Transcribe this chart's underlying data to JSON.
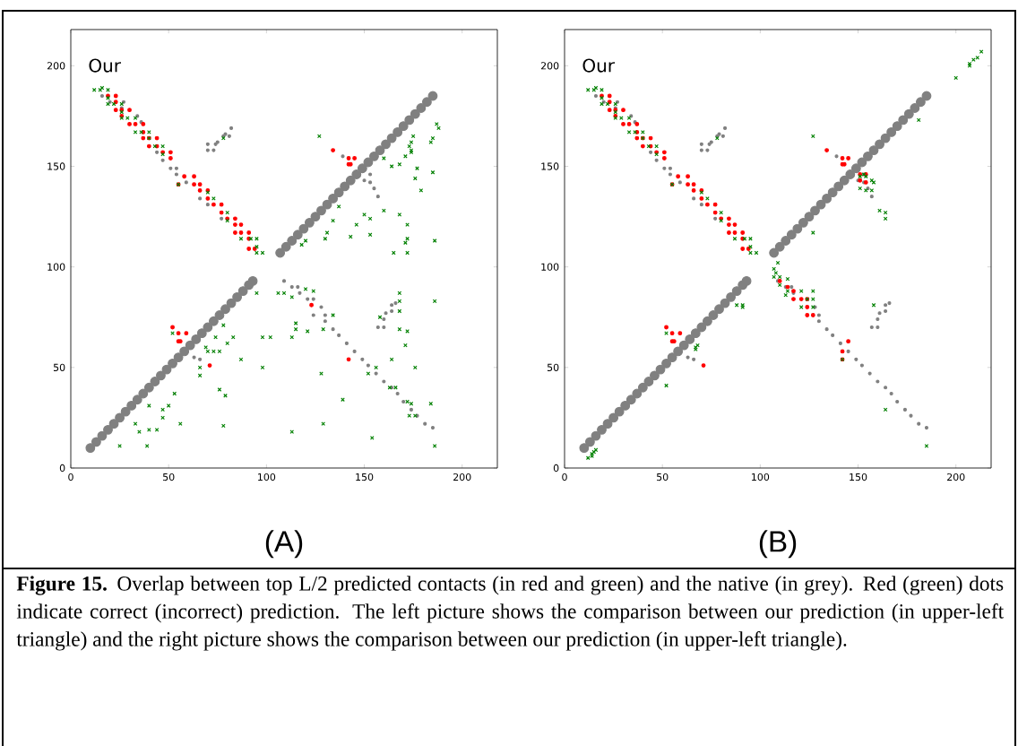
{
  "chart_data": [
    {
      "type": "scatter",
      "xlabel": "(A)",
      "annotations": [
        "Our",
        "**Figure 15.** Overlap between top L/2 predicted contacts (in red and green) and the native (in grey). Red (green) dots indicate correct (incorrect) prediction. The left picture shows the comparison between our prediction (in upper-left triangle) and the right picture shows the comparison between our prediction (in upper-left triangle)."
      ],
      "xlim": [
        0,
        218
      ],
      "ylim": [
        0,
        218
      ],
      "xticks": [
        0,
        50,
        100,
        150,
        200
      ],
      "yticks": [
        0,
        50,
        100,
        150,
        200
      ],
      "series": [
        {
          "color": "#808080",
          "marker": "circle",
          "x": [
            10,
            13,
            16,
            19,
            22,
            25,
            28,
            31,
            34,
            37,
            40,
            43,
            46,
            49,
            52,
            55,
            58,
            61,
            64,
            67,
            70,
            73,
            76,
            79,
            82,
            85,
            88,
            91,
            93,
            107,
            110,
            113,
            116,
            119,
            122,
            125,
            128,
            131,
            134,
            137,
            140,
            143,
            146,
            149,
            152,
            155,
            158,
            161,
            164,
            167,
            170,
            173,
            176,
            179,
            182,
            185
          ],
          "values": [
            10,
            13,
            16,
            19,
            22,
            25,
            28,
            31,
            34,
            37,
            40,
            43,
            46,
            49,
            52,
            55,
            58,
            61,
            64,
            67,
            70,
            73,
            76,
            79,
            82,
            85,
            88,
            91,
            93,
            107,
            110,
            113,
            116,
            119,
            122,
            125,
            128,
            131,
            134,
            137,
            140,
            143,
            146,
            149,
            152,
            155,
            158,
            161,
            164,
            167,
            170,
            173,
            176,
            179,
            182,
            185
          ]
        },
        {
          "color": "#808080",
          "marker": "circle",
          "x": [
            16,
            20,
            27,
            26,
            34,
            36,
            44,
            47,
            51,
            54,
            54,
            59,
            66,
            70,
            77,
            70,
            70,
            73,
            74,
            75,
            78,
            79,
            81,
            82,
            139,
            153,
            150,
            153,
            155,
            157,
            109,
            113,
            116,
            117,
            121,
            124,
            128,
            124,
            130,
            130,
            134,
            137,
            141,
            145,
            149,
            152,
            156,
            160,
            164,
            167,
            170,
            174,
            177,
            181,
            185,
            157,
            160,
            160,
            161,
            164,
            164,
            166,
            63,
            66
          ],
          "values": [
            185,
            182,
            182,
            179,
            175,
            172,
            157,
            153,
            149,
            149,
            146,
            142,
            134,
            131,
            124,
            161,
            158,
            158,
            161,
            162,
            165,
            166,
            165,
            169,
            155,
            146,
            143,
            142,
            139,
            135,
            93,
            90,
            90,
            87,
            84,
            84,
            80,
            76,
            76,
            73,
            69,
            66,
            62,
            58,
            54,
            51,
            47,
            43,
            40,
            37,
            33,
            29,
            26,
            22,
            20,
            70,
            70,
            74,
            77,
            78,
            81,
            82,
            55,
            54
          ]
        },
        {
          "color": "#ff0000",
          "marker": "circle",
          "x": [
            19,
            23,
            23,
            23,
            26,
            30,
            26,
            30,
            33,
            37,
            37,
            37,
            40,
            44,
            40,
            44,
            51,
            47,
            51,
            55,
            58,
            63,
            63,
            66,
            66,
            70,
            70,
            73,
            77,
            77,
            80,
            84,
            84,
            87,
            84,
            87,
            91,
            91,
            91,
            94,
            134,
            142,
            145,
            142,
            143,
            52,
            55,
            59,
            55,
            56,
            71,
            123,
            142
          ],
          "values": [
            185,
            185,
            182,
            178,
            178,
            178,
            175,
            171,
            171,
            171,
            167,
            164,
            164,
            164,
            160,
            160,
            157,
            157,
            154,
            141,
            145,
            145,
            141,
            141,
            138,
            138,
            134,
            131,
            131,
            127,
            124,
            124,
            121,
            121,
            117,
            117,
            117,
            114,
            109,
            109,
            158,
            154,
            154,
            151,
            151,
            70,
            67,
            67,
            63,
            63,
            51,
            81,
            54
          ]
        },
        {
          "color": "#008000",
          "marker": "cross",
          "x": [
            12,
            15,
            16,
            19,
            19,
            19,
            22,
            26,
            26,
            26,
            29,
            33,
            33,
            36,
            40,
            40,
            43,
            47,
            47,
            55,
            70,
            73,
            80,
            80,
            87,
            92,
            95,
            95,
            95,
            98,
            78,
            127,
            52,
            160,
            164,
            168,
            171,
            174,
            174,
            173,
            174,
            175,
            177,
            176,
            179,
            184,
            185,
            185,
            187,
            188,
            137,
            134,
            131,
            130,
            120,
            118,
            150,
            153,
            146,
            143,
            153,
            160,
            168,
            172,
            172,
            171,
            165,
            172,
            186,
            25,
            33,
            35,
            39,
            40,
            40,
            44,
            47,
            47,
            50,
            53,
            56,
            66,
            66,
            69,
            70,
            73,
            76,
            74,
            78,
            80,
            83,
            76,
            79,
            78,
            87,
            95,
            98,
            98,
            102,
            106,
            109,
            113,
            120,
            124,
            113,
            115,
            115,
            121,
            113,
            128,
            129,
            134,
            129,
            139,
            152,
            156,
            154,
            158,
            164,
            163,
            166,
            168,
            168,
            168,
            168,
            172,
            171,
            176,
            172,
            174,
            173,
            176,
            184,
            186,
            186
          ],
          "values": [
            188,
            188,
            189,
            188,
            184,
            181,
            181,
            181,
            177,
            174,
            174,
            174,
            167,
            167,
            167,
            164,
            160,
            160,
            156,
            141,
            137,
            134,
            127,
            123,
            114,
            114,
            114,
            110,
            107,
            107,
            164,
            165,
            67,
            154,
            150,
            151,
            155,
            157,
            158,
            160,
            162,
            165,
            149,
            144,
            138,
            162,
            164,
            147,
            171,
            169,
            130,
            123,
            117,
            114,
            113,
            111,
            126,
            124,
            121,
            115,
            116,
            128,
            126,
            121,
            114,
            112,
            107,
            107,
            113,
            11,
            22,
            18,
            11,
            31,
            19,
            19,
            29,
            25,
            31,
            37,
            22,
            50,
            46,
            60,
            58,
            58,
            58,
            65,
            71,
            62,
            65,
            39,
            36,
            21,
            54,
            87,
            65,
            50,
            65,
            87,
            87,
            85,
            89,
            88,
            65,
            72,
            69,
            68,
            18,
            47,
            22,
            76,
            69,
            34,
            47,
            50,
            15,
            75,
            54,
            40,
            40,
            87,
            83,
            78,
            69,
            68,
            61,
            50,
            33,
            32,
            26,
            26,
            32,
            83,
            11
          ]
        }
      ]
    },
    {
      "type": "scatter",
      "xlabel": "(B)",
      "annotations": [
        "Our"
      ],
      "xlim": [
        0,
        218
      ],
      "ylim": [
        0,
        218
      ],
      "xticks": [
        0,
        50,
        100,
        150,
        200
      ],
      "yticks": [
        0,
        50,
        100,
        150,
        200
      ],
      "series": [
        {
          "color": "#808080",
          "marker": "circle",
          "x": [
            10,
            13,
            16,
            19,
            22,
            25,
            28,
            31,
            34,
            37,
            40,
            43,
            46,
            49,
            52,
            55,
            58,
            61,
            64,
            67,
            70,
            73,
            76,
            79,
            82,
            85,
            88,
            91,
            93,
            107,
            110,
            113,
            116,
            119,
            122,
            125,
            128,
            131,
            134,
            137,
            140,
            143,
            146,
            149,
            152,
            155,
            158,
            161,
            164,
            167,
            170,
            173,
            176,
            179,
            182,
            185
          ],
          "values": [
            10,
            13,
            16,
            19,
            22,
            25,
            28,
            31,
            34,
            37,
            40,
            43,
            46,
            49,
            52,
            55,
            58,
            61,
            64,
            67,
            70,
            73,
            76,
            79,
            82,
            85,
            88,
            91,
            93,
            107,
            110,
            113,
            116,
            119,
            122,
            125,
            128,
            131,
            134,
            137,
            140,
            143,
            146,
            149,
            152,
            155,
            158,
            161,
            164,
            167,
            170,
            173,
            176,
            179,
            182,
            185
          ]
        },
        {
          "color": "#808080",
          "marker": "circle",
          "x": [
            16,
            20,
            27,
            26,
            34,
            36,
            44,
            47,
            51,
            54,
            54,
            59,
            66,
            70,
            77,
            70,
            70,
            73,
            74,
            75,
            78,
            79,
            81,
            82,
            139,
            153,
            150,
            153,
            155,
            157,
            109,
            113,
            116,
            117,
            128,
            130,
            130,
            134,
            137,
            141,
            145,
            149,
            152,
            156,
            160,
            164,
            167,
            170,
            174,
            177,
            181,
            185,
            157,
            160,
            160,
            161,
            164,
            164,
            166,
            63,
            66
          ],
          "values": [
            185,
            182,
            182,
            179,
            175,
            172,
            157,
            153,
            149,
            149,
            146,
            142,
            134,
            131,
            124,
            161,
            158,
            158,
            161,
            162,
            165,
            166,
            165,
            169,
            155,
            146,
            143,
            142,
            139,
            135,
            93,
            90,
            90,
            87,
            80,
            76,
            73,
            69,
            66,
            62,
            58,
            54,
            51,
            47,
            43,
            40,
            37,
            33,
            29,
            26,
            22,
            20,
            70,
            70,
            74,
            77,
            78,
            81,
            82,
            55,
            54
          ]
        },
        {
          "color": "#ff0000",
          "marker": "circle",
          "x": [
            19,
            23,
            23,
            23,
            26,
            30,
            26,
            30,
            33,
            37,
            37,
            37,
            40,
            44,
            40,
            44,
            51,
            47,
            51,
            55,
            58,
            63,
            63,
            66,
            66,
            70,
            70,
            73,
            77,
            77,
            80,
            84,
            84,
            87,
            84,
            87,
            91,
            91,
            91,
            94,
            134,
            142,
            145,
            142,
            143,
            52,
            55,
            59,
            55,
            56,
            71,
            110,
            114,
            117,
            117,
            121,
            124,
            124,
            127,
            124,
            145,
            142,
            142,
            151,
            151,
            154,
            154
          ],
          "values": [
            185,
            185,
            182,
            178,
            178,
            178,
            175,
            171,
            171,
            171,
            167,
            164,
            164,
            164,
            160,
            160,
            157,
            157,
            154,
            141,
            145,
            145,
            141,
            141,
            138,
            138,
            134,
            131,
            131,
            127,
            124,
            124,
            121,
            121,
            117,
            117,
            117,
            114,
            109,
            109,
            158,
            154,
            154,
            151,
            151,
            70,
            67,
            67,
            63,
            63,
            51,
            93,
            90,
            88,
            84,
            84,
            84,
            80,
            76,
            76,
            63,
            58,
            54,
            146,
            143,
            146,
            142
          ]
        },
        {
          "color": "#008000",
          "marker": "cross",
          "x": [
            12,
            15,
            16,
            19,
            19,
            19,
            22,
            26,
            26,
            26,
            29,
            33,
            33,
            36,
            40,
            40,
            43,
            47,
            47,
            55,
            70,
            73,
            80,
            80,
            87,
            92,
            95,
            95,
            95,
            98,
            78,
            127,
            52,
            181,
            127,
            151,
            153,
            154,
            154,
            151,
            157,
            158,
            157,
            161,
            164,
            164,
            200,
            207,
            207,
            209,
            211,
            213,
            107,
            108,
            109,
            110,
            107,
            114,
            110,
            114,
            113,
            121,
            127,
            121,
            124,
            127,
            127,
            142,
            88,
            91,
            91,
            67,
            68,
            67,
            52,
            158,
            164,
            185,
            12,
            14,
            15,
            16,
            14
          ],
          "values": [
            188,
            188,
            189,
            188,
            184,
            181,
            181,
            181,
            177,
            174,
            174,
            174,
            167,
            167,
            167,
            164,
            160,
            160,
            156,
            141,
            137,
            134,
            127,
            123,
            114,
            114,
            114,
            110,
            107,
            107,
            164,
            165,
            67,
            173,
            117,
            145,
            146,
            145,
            138,
            139,
            143,
            142,
            138,
            128,
            127,
            124,
            194,
            200,
            201,
            203,
            204,
            207,
            99,
            97,
            102,
            95,
            95,
            94,
            91,
            88,
            86,
            88,
            88,
            80,
            84,
            84,
            80,
            54,
            81,
            81,
            80,
            60,
            61,
            59,
            41,
            81,
            29,
            11,
            5,
            7,
            8,
            9,
            6
          ]
        }
      ]
    }
  ]
}
